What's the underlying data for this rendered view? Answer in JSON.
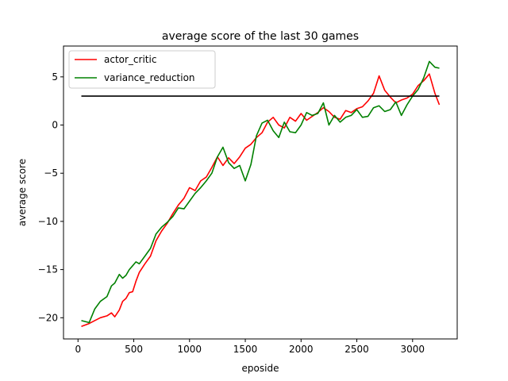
{
  "chart_data": {
    "type": "line",
    "title": "average score of the last 30 games",
    "xlabel": "eposide",
    "ylabel": "average score",
    "xlim": [
      -130,
      3400
    ],
    "ylim": [
      -22.2,
      8.2
    ],
    "xticks": [
      0,
      500,
      1000,
      1500,
      2000,
      2500,
      3000
    ],
    "yticks": [
      -20,
      -15,
      -10,
      -5,
      0,
      5
    ],
    "grid": false,
    "legend_position": "upper left",
    "series": [
      {
        "name": "actor_critic",
        "color": "#ff0000",
        "x": [
          30,
          100,
          150,
          200,
          260,
          300,
          330,
          370,
          400,
          430,
          460,
          490,
          520,
          550,
          600,
          650,
          700,
          750,
          800,
          850,
          900,
          950,
          1000,
          1050,
          1100,
          1150,
          1200,
          1250,
          1300,
          1350,
          1400,
          1450,
          1500,
          1550,
          1600,
          1650,
          1700,
          1750,
          1800,
          1850,
          1900,
          1950,
          2000,
          2050,
          2100,
          2150,
          2200,
          2250,
          2300,
          2350,
          2400,
          2450,
          2500,
          2550,
          2600,
          2650,
          2700,
          2750,
          2800,
          2850,
          2900,
          2950,
          3000,
          3050,
          3100,
          3150,
          3200,
          3240
        ],
        "y": [
          -20.9,
          -20.6,
          -20.3,
          -20.0,
          -19.8,
          -19.5,
          -19.9,
          -19.2,
          -18.3,
          -18.0,
          -17.4,
          -17.3,
          -16.2,
          -15.3,
          -14.4,
          -13.6,
          -12.0,
          -11.0,
          -10.2,
          -9.2,
          -8.3,
          -7.6,
          -6.5,
          -6.8,
          -5.8,
          -5.4,
          -4.4,
          -3.3,
          -4.2,
          -3.4,
          -4.0,
          -3.3,
          -2.4,
          -2.0,
          -1.3,
          -0.8,
          0.3,
          0.8,
          0.0,
          -0.3,
          0.8,
          0.4,
          1.2,
          0.5,
          0.9,
          1.3,
          1.8,
          1.4,
          0.8,
          0.6,
          1.5,
          1.3,
          1.7,
          1.9,
          2.5,
          3.3,
          5.1,
          3.6,
          2.9,
          2.3,
          2.6,
          2.8,
          3.2,
          4.1,
          4.6,
          5.3,
          3.3,
          2.1
        ]
      },
      {
        "name": "variance_reduction",
        "color": "#008000",
        "x": [
          30,
          100,
          150,
          200,
          260,
          300,
          330,
          370,
          400,
          430,
          460,
          490,
          520,
          550,
          600,
          650,
          700,
          750,
          800,
          850,
          900,
          950,
          1000,
          1050,
          1100,
          1150,
          1200,
          1250,
          1300,
          1350,
          1400,
          1450,
          1500,
          1550,
          1600,
          1650,
          1700,
          1750,
          1800,
          1850,
          1900,
          1950,
          2000,
          2050,
          2100,
          2150,
          2200,
          2250,
          2300,
          2350,
          2400,
          2450,
          2500,
          2550,
          2600,
          2650,
          2700,
          2750,
          2800,
          2850,
          2900,
          2950,
          3000,
          3050,
          3100,
          3150,
          3200,
          3240
        ],
        "y": [
          -20.3,
          -20.5,
          -19.1,
          -18.3,
          -17.8,
          -16.7,
          -16.4,
          -15.5,
          -15.9,
          -15.6,
          -15.0,
          -14.6,
          -14.2,
          -14.4,
          -13.6,
          -12.8,
          -11.3,
          -10.6,
          -10.1,
          -9.5,
          -8.6,
          -8.7,
          -7.9,
          -7.1,
          -6.5,
          -5.8,
          -5.0,
          -3.3,
          -2.3,
          -3.9,
          -4.5,
          -4.2,
          -5.8,
          -4.1,
          -1.1,
          0.2,
          0.5,
          -0.6,
          -1.3,
          0.3,
          -0.7,
          -0.8,
          0.0,
          1.3,
          1.0,
          1.2,
          2.3,
          0.0,
          1.0,
          0.3,
          0.8,
          1.0,
          1.6,
          0.8,
          0.9,
          1.8,
          2.0,
          1.4,
          1.6,
          2.4,
          1.0,
          2.1,
          3.0,
          3.7,
          4.9,
          6.6,
          6.0,
          5.9
        ]
      },
      {
        "name": "",
        "color": "#000000",
        "x": [
          30,
          3240
        ],
        "y": [
          3.0,
          3.0
        ]
      }
    ]
  }
}
